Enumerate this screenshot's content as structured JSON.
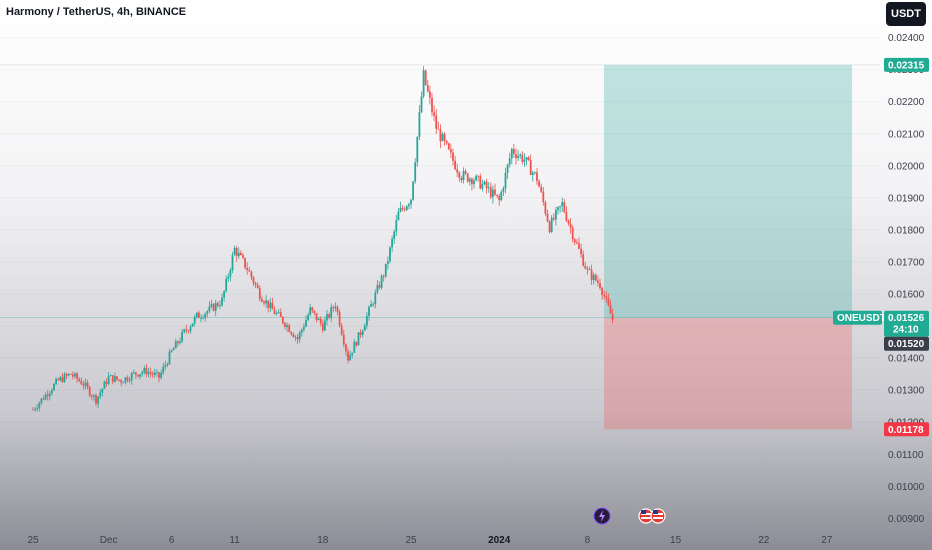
{
  "header": {
    "title": "Harmony / TetherUS, 4h, BINANCE",
    "currency": "USDT"
  },
  "chart_data": {
    "type": "candlestick",
    "ylim": [
      0.0087,
      0.0243
    ],
    "y_ticks": [
      "0.02400",
      "0.02300",
      "0.02200",
      "0.02100",
      "0.02000",
      "0.01900",
      "0.01800",
      "0.01700",
      "0.01600",
      "0.01500",
      "0.01400",
      "0.01300",
      "0.01200",
      "0.01100",
      "0.01000",
      "0.00900"
    ],
    "x_ticks": [
      {
        "label": "25",
        "day": 0
      },
      {
        "label": "Dec",
        "day": 6
      },
      {
        "label": "6",
        "day": 11
      },
      {
        "label": "11",
        "day": 16
      },
      {
        "label": "18",
        "day": 23
      },
      {
        "label": "25",
        "day": 30
      },
      {
        "label": "2024",
        "day": 37,
        "bold": true
      },
      {
        "label": "8",
        "day": 44
      },
      {
        "label": "15",
        "day": 51
      },
      {
        "label": "22",
        "day": 58
      },
      {
        "label": "27",
        "day": 63
      }
    ],
    "price_path": [
      [
        0,
        0.0124
      ],
      [
        2,
        0.0133
      ],
      [
        3,
        0.0135
      ],
      [
        4,
        0.0132
      ],
      [
        5,
        0.0127
      ],
      [
        6,
        0.0134
      ],
      [
        7,
        0.0133
      ],
      [
        8,
        0.0135
      ],
      [
        9,
        0.0136
      ],
      [
        10,
        0.0134
      ],
      [
        11,
        0.0142
      ],
      [
        12,
        0.0148
      ],
      [
        13,
        0.0153
      ],
      [
        14,
        0.0155
      ],
      [
        15,
        0.0158
      ],
      [
        16,
        0.0174
      ],
      [
        17,
        0.0168
      ],
      [
        18,
        0.016
      ],
      [
        19,
        0.0155
      ],
      [
        20,
        0.0151
      ],
      [
        21,
        0.0146
      ],
      [
        22,
        0.0155
      ],
      [
        23,
        0.015
      ],
      [
        24,
        0.0157
      ],
      [
        25,
        0.014
      ],
      [
        26,
        0.0148
      ],
      [
        27,
        0.0158
      ],
      [
        28,
        0.0168
      ],
      [
        29,
        0.0185
      ],
      [
        30,
        0.019
      ],
      [
        31,
        0.0228
      ],
      [
        32,
        0.0212
      ],
      [
        33,
        0.0204
      ],
      [
        34,
        0.0197
      ],
      [
        35,
        0.0196
      ],
      [
        36,
        0.0193
      ],
      [
        37,
        0.0189
      ],
      [
        38,
        0.0205
      ],
      [
        39,
        0.0202
      ],
      [
        40,
        0.0196
      ],
      [
        41,
        0.0181
      ],
      [
        42,
        0.0188
      ],
      [
        43,
        0.0177
      ],
      [
        44,
        0.0167
      ],
      [
        45,
        0.0163
      ],
      [
        46,
        0.0152
      ]
    ],
    "position": {
      "entry": 0.01526,
      "target": 0.02315,
      "stop": 0.01178,
      "entry_label": "0.01526",
      "target_label": "0.02315",
      "stop_label": "0.01178",
      "symbol": "ONEUSDT",
      "countdown": "24:10",
      "low_label": "0.01520"
    },
    "colors": {
      "up": "#26a69a",
      "down": "#ef5350",
      "profit_zone": "#26a69a",
      "loss_zone": "#ef5350",
      "tag_profit": "#22ab94",
      "tag_loss": "#f23645",
      "tag_dark": "#3a3e4a"
    }
  }
}
